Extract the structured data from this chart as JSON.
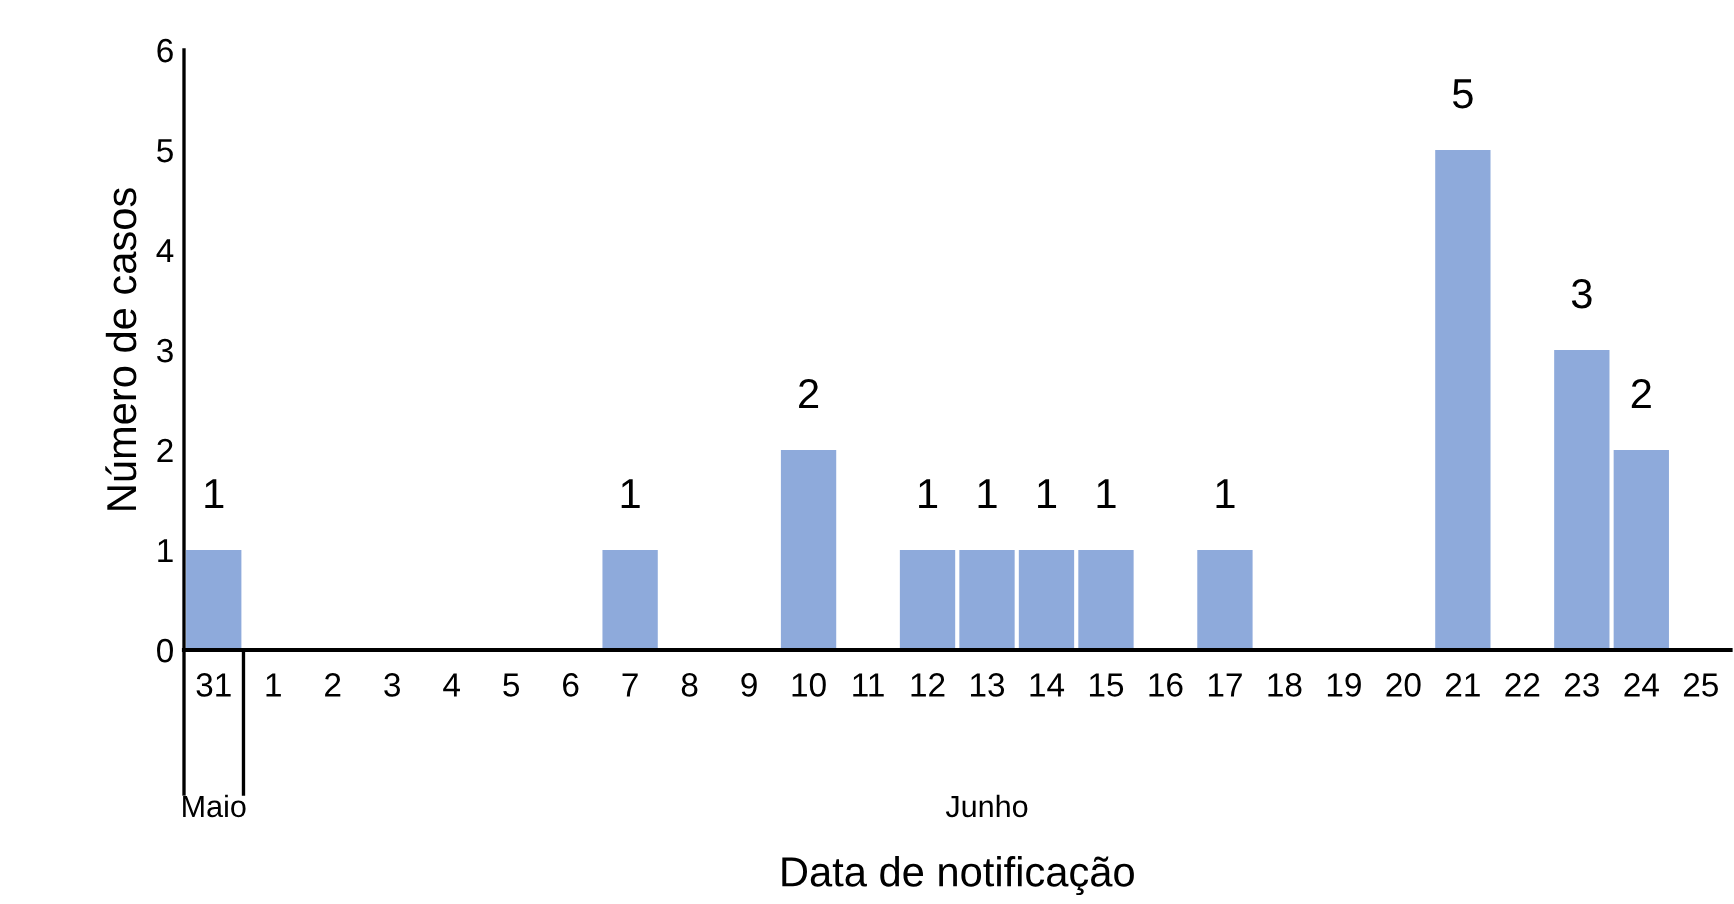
{
  "chart_data": {
    "type": "bar",
    "xlabel": "Data de notificação",
    "ylabel": "Número de casos",
    "categories": [
      "31",
      "1",
      "2",
      "3",
      "4",
      "5",
      "6",
      "7",
      "8",
      "9",
      "10",
      "11",
      "12",
      "13",
      "14",
      "15",
      "16",
      "17",
      "18",
      "19",
      "20",
      "21",
      "22",
      "23",
      "24",
      "25"
    ],
    "values": [
      1,
      0,
      0,
      0,
      0,
      0,
      0,
      1,
      0,
      0,
      2,
      0,
      1,
      1,
      1,
      1,
      0,
      1,
      0,
      0,
      0,
      5,
      0,
      3,
      2,
      0
    ],
    "value_labels": [
      "1",
      null,
      null,
      null,
      null,
      null,
      null,
      "1",
      null,
      null,
      "2",
      null,
      "1",
      "1",
      "1",
      "1",
      null,
      "1",
      null,
      null,
      null,
      "5",
      null,
      "3",
      "2",
      null
    ],
    "color": "#8eaadb",
    "ylim": [
      0,
      6
    ],
    "yticks": [
      0,
      1,
      2,
      3,
      4,
      5,
      6
    ],
    "grid": false,
    "legend": false,
    "annotations": [
      "Maio",
      "Junho"
    ]
  }
}
